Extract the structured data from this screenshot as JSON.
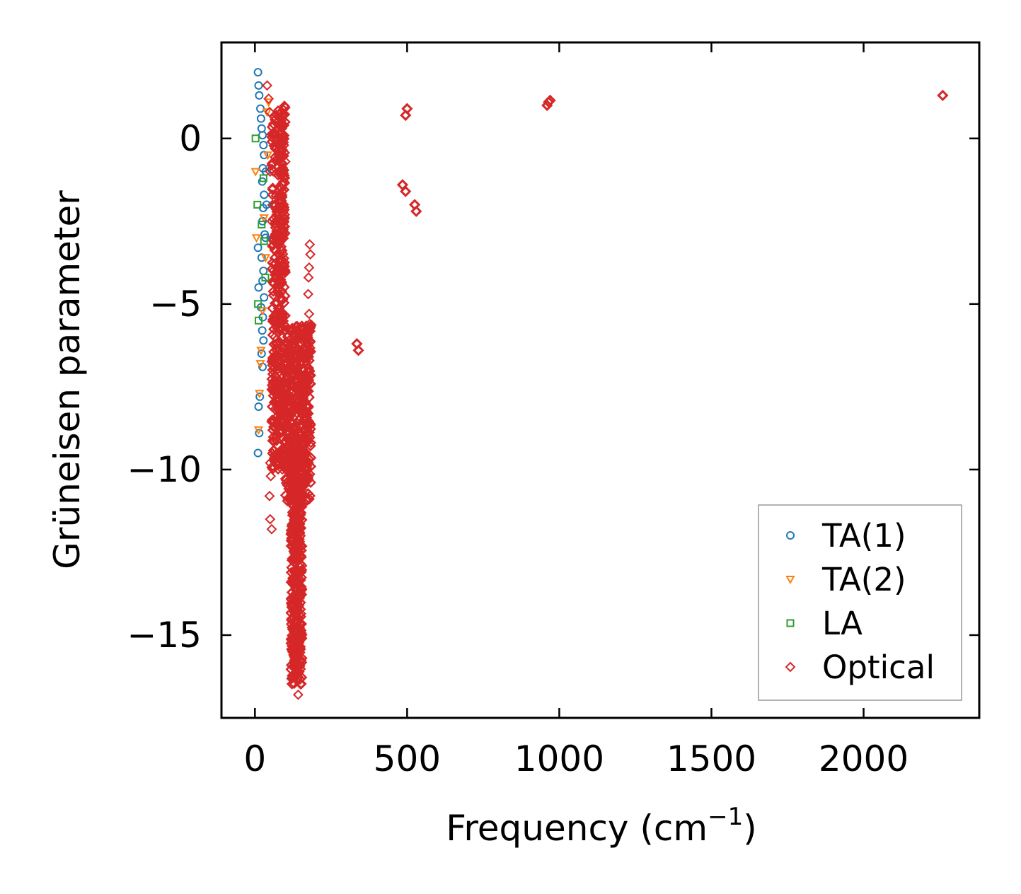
{
  "chart_data": {
    "type": "scatter",
    "title": "",
    "xlabel": "Frequency (cm",
    "xlabel_sup": "−1",
    "xlabel_close": ")",
    "ylabel": "Grüneisen parameter",
    "xlim": [
      -110,
      2380
    ],
    "ylim": [
      -17.5,
      2.9
    ],
    "x_ticks": [
      0,
      500,
      1000,
      1500,
      2000
    ],
    "x_tick_labels": [
      "0",
      "500",
      "1000",
      "1500",
      "2000"
    ],
    "y_ticks": [
      0,
      -5,
      -10,
      -15
    ],
    "y_tick_labels": [
      "0",
      "−5",
      "−10",
      "−15"
    ],
    "grid": false,
    "legend_position": "bottom-right",
    "series": [
      {
        "name": "TA(1)",
        "marker": "circle",
        "color": "#1f77b4",
        "points": [
          [
            10,
            2.0
          ],
          [
            12,
            1.6
          ],
          [
            14,
            1.3
          ],
          [
            18,
            0.9
          ],
          [
            20,
            0.6
          ],
          [
            22,
            0.3
          ],
          [
            25,
            0.1
          ],
          [
            28,
            -0.2
          ],
          [
            30,
            -0.5
          ],
          [
            26,
            -0.9
          ],
          [
            24,
            -1.3
          ],
          [
            30,
            -1.7
          ],
          [
            27,
            -2.1
          ],
          [
            25,
            -2.5
          ],
          [
            32,
            -2.9
          ],
          [
            10,
            -3.3
          ],
          [
            22,
            -3.6
          ],
          [
            28,
            -4.0
          ],
          [
            25,
            -4.3
          ],
          [
            12,
            -4.5
          ],
          [
            30,
            -4.8
          ],
          [
            20,
            -5.1
          ],
          [
            26,
            -5.4
          ],
          [
            24,
            -5.8
          ],
          [
            28,
            -6.1
          ],
          [
            22,
            -6.5
          ],
          [
            25,
            -6.9
          ],
          [
            16,
            -7.8
          ],
          [
            12,
            -8.1
          ],
          [
            14,
            -8.9
          ],
          [
            10,
            -9.5
          ],
          [
            35,
            -3.0
          ],
          [
            38,
            -2.0
          ],
          [
            36,
            -1.0
          ]
        ]
      },
      {
        "name": "TA(2)",
        "marker": "triangle-down",
        "color": "#ff7f0e",
        "points": [
          [
            2,
            -1.0
          ],
          [
            5,
            -3.0
          ],
          [
            20,
            -6.4
          ],
          [
            18,
            -6.8
          ],
          [
            30,
            -2.4
          ],
          [
            40,
            0.8
          ],
          [
            45,
            1.1
          ],
          [
            42,
            -0.5
          ],
          [
            35,
            -3.6
          ],
          [
            25,
            -5.2
          ],
          [
            15,
            -7.7
          ],
          [
            12,
            -8.8
          ]
        ]
      },
      {
        "name": "LA",
        "marker": "square",
        "color": "#2ca02c",
        "points": [
          [
            2,
            0.0
          ],
          [
            8,
            -2.0
          ],
          [
            10,
            -5.0
          ],
          [
            12,
            -5.5
          ],
          [
            28,
            -1.2
          ],
          [
            30,
            -3.1
          ],
          [
            34,
            -4.2
          ],
          [
            22,
            -2.6
          ]
        ]
      },
      {
        "name": "Optical",
        "marker": "diamond",
        "color": "#d62728",
        "points": [
          [
            40,
            1.6
          ],
          [
            45,
            1.2
          ],
          [
            48,
            0.8
          ],
          [
            50,
            -1.0
          ],
          [
            55,
            -2.5
          ],
          [
            60,
            -4.0
          ],
          [
            65,
            -6.0
          ],
          [
            70,
            -7.5
          ],
          [
            75,
            -8.5
          ],
          [
            80,
            -9.5
          ],
          [
            90,
            -10.0
          ],
          [
            95,
            -2.0
          ],
          [
            100,
            -4.0
          ],
          [
            110,
            -6.5
          ],
          [
            120,
            -8.0
          ],
          [
            125,
            -9.5
          ],
          [
            130,
            -11.0
          ],
          [
            135,
            -12.5
          ],
          [
            140,
            -14.0
          ],
          [
            140,
            -15.5
          ],
          [
            140,
            -16.2
          ],
          [
            142,
            -16.8
          ],
          [
            150,
            -9.5
          ],
          [
            160,
            -8.5
          ],
          [
            170,
            -7.5
          ],
          [
            175,
            -6.5
          ],
          [
            180,
            -5.6
          ],
          [
            180,
            -3.2
          ],
          [
            182,
            -3.5
          ],
          [
            178,
            -3.9
          ],
          [
            176,
            -4.2
          ],
          [
            175,
            -4.7
          ],
          [
            178,
            -5.3
          ],
          [
            50,
            -9.8
          ],
          [
            52,
            -10.2
          ],
          [
            48,
            -10.8
          ],
          [
            50,
            -11.5
          ],
          [
            55,
            -11.8
          ],
          [
            100,
            -0.7
          ],
          [
            90,
            -0.5
          ],
          [
            335,
            -6.2
          ],
          [
            340,
            -6.4
          ],
          [
            485,
            -1.4
          ],
          [
            495,
            -1.6
          ],
          [
            525,
            -2.0
          ],
          [
            530,
            -2.2
          ],
          [
            495,
            0.7
          ],
          [
            500,
            0.9
          ],
          [
            960,
            1.0
          ],
          [
            965,
            1.1
          ],
          [
            970,
            1.15
          ],
          [
            2260,
            1.3
          ]
        ]
      }
    ],
    "optical_bulk_regions": [
      {
        "x_range": [
          55,
          100
        ],
        "y_range": [
          -10,
          1.0
        ]
      },
      {
        "x_range": [
          100,
          185
        ],
        "y_range": [
          -11,
          -5.6
        ]
      },
      {
        "x_range": [
          118,
          155
        ],
        "y_range": [
          -16.5,
          -9
        ]
      }
    ]
  }
}
